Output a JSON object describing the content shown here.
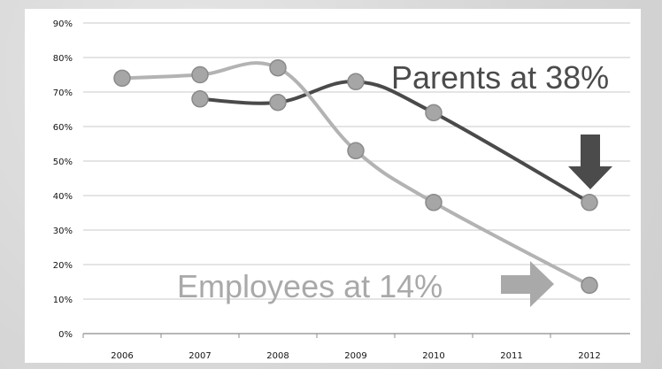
{
  "chart_data": {
    "type": "line",
    "title": "",
    "xlabel": "",
    "ylabel": "",
    "x": [
      "2006",
      "2007",
      "2008",
      "2009",
      "2010",
      "2011",
      "2012"
    ],
    "yticks": [
      "0%",
      "10%",
      "20%",
      "30%",
      "40%",
      "50%",
      "60%",
      "70%",
      "80%",
      "90%"
    ],
    "ylim": [
      0,
      90
    ],
    "grid": true,
    "series": [
      {
        "name": "Parents",
        "color": "#4a4a4a",
        "points": [
          {
            "x": "2007",
            "y": 68
          },
          {
            "x": "2008",
            "y": 67
          },
          {
            "x": "2009",
            "y": 73
          },
          {
            "x": "2010",
            "y": 64
          },
          {
            "x": "2012",
            "y": 38
          }
        ]
      },
      {
        "name": "Employees",
        "color": "#b3b3b3",
        "points": [
          {
            "x": "2006",
            "y": 74
          },
          {
            "x": "2007",
            "y": 75
          },
          {
            "x": "2008",
            "y": 77
          },
          {
            "x": "2009",
            "y": 53
          },
          {
            "x": "2010",
            "y": 38
          },
          {
            "x": "2012",
            "y": 14
          }
        ]
      }
    ],
    "annotations": {
      "parents": "Parents at 38%",
      "employees": "Employees at 14%"
    }
  }
}
